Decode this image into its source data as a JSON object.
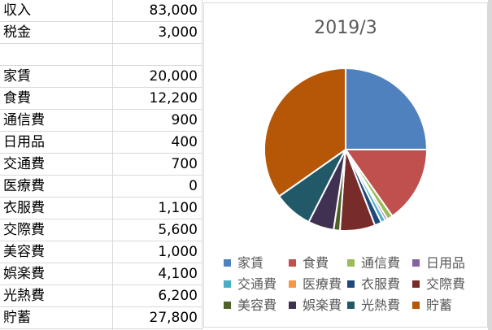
{
  "sheet": {
    "rows": [
      {
        "label": "収入",
        "value": "83,000"
      },
      {
        "label": "税金",
        "value": "3,000"
      },
      {
        "label": "",
        "value": ""
      },
      {
        "label": "家賃",
        "value": "20,000"
      },
      {
        "label": "食費",
        "value": "12,200"
      },
      {
        "label": "通信費",
        "value": "900"
      },
      {
        "label": "日用品",
        "value": "400"
      },
      {
        "label": "交通費",
        "value": "700"
      },
      {
        "label": "医療費",
        "value": "0"
      },
      {
        "label": "衣服費",
        "value": "1,100"
      },
      {
        "label": "交際費",
        "value": "5,600"
      },
      {
        "label": "美容費",
        "value": "1,000"
      },
      {
        "label": "娯楽費",
        "value": "4,100"
      },
      {
        "label": "光熱費",
        "value": "6,200"
      },
      {
        "label": "貯蓄",
        "value": "27,800"
      }
    ]
  },
  "chart_data": {
    "type": "pie",
    "title": "2019/3",
    "categories": [
      "家賃",
      "食費",
      "通信費",
      "日用品",
      "交通費",
      "医療費",
      "衣服費",
      "交際費",
      "美容費",
      "娯楽費",
      "光熱費",
      "貯蓄"
    ],
    "values": [
      20000,
      12200,
      900,
      400,
      700,
      0,
      1100,
      5600,
      1000,
      4100,
      6200,
      27800
    ],
    "colors": [
      "#4e81bd",
      "#c0504d",
      "#9bbb59",
      "#8064a2",
      "#4bacc6",
      "#f79646",
      "#1f497d",
      "#772c2a",
      "#4f6228",
      "#403152",
      "#215968",
      "#b65708"
    ],
    "legend": "bottom",
    "start_angle": "top",
    "direction": "clockwise"
  }
}
